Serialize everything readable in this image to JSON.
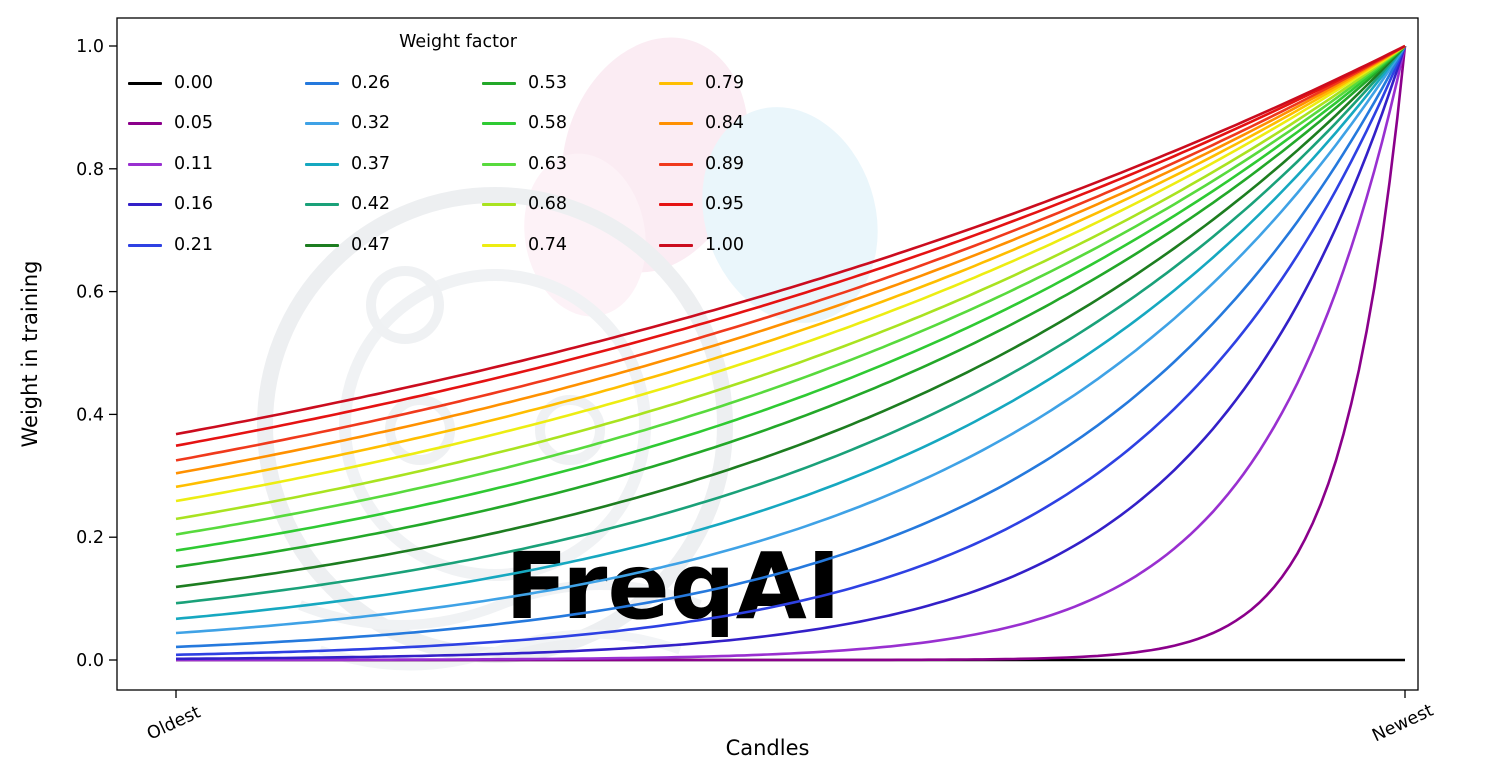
{
  "chart_data": {
    "type": "line",
    "title": "",
    "xlabel": "Candles",
    "ylabel": "Weight in training",
    "x_tick_labels": [
      "Oldest",
      "Newest"
    ],
    "y_ticks": [
      0.0,
      0.2,
      0.4,
      0.6,
      0.8,
      1.0
    ],
    "ylim": [
      0,
      1
    ],
    "x_range": [
      0,
      1
    ],
    "grid": false,
    "legend_title": "Weight factor",
    "legend_position": "upper left",
    "legend_columns": 4,
    "axis_color": "#000000",
    "background": "#ffffff",
    "curve_formula": "weight = exp(-(1 - x) / weight_factor); weight_factor 0 gives a flat line at 0",
    "watermark": "FreqAI",
    "series": [
      {
        "label": "0.00",
        "weight_factor": 0.0,
        "color": "#000000",
        "y_at_oldest": 0.0,
        "y_at_newest": 0.0
      },
      {
        "label": "0.05",
        "weight_factor": 0.05,
        "color": "#8b008b",
        "y_at_oldest": 0.0,
        "y_at_newest": 1.0
      },
      {
        "label": "0.11",
        "weight_factor": 0.11,
        "color": "#9930d0",
        "y_at_oldest": 0.0001,
        "y_at_newest": 1.0
      },
      {
        "label": "0.16",
        "weight_factor": 0.16,
        "color": "#3320c8",
        "y_at_oldest": 0.002,
        "y_at_newest": 1.0
      },
      {
        "label": "0.21",
        "weight_factor": 0.21,
        "color": "#2e41e3",
        "y_at_oldest": 0.009,
        "y_at_newest": 1.0
      },
      {
        "label": "0.26",
        "weight_factor": 0.26,
        "color": "#2579dd",
        "y_at_oldest": 0.021,
        "y_at_newest": 1.0
      },
      {
        "label": "0.32",
        "weight_factor": 0.32,
        "color": "#3fa2e6",
        "y_at_oldest": 0.044,
        "y_at_newest": 1.0
      },
      {
        "label": "0.37",
        "weight_factor": 0.37,
        "color": "#16a8c0",
        "y_at_oldest": 0.067,
        "y_at_newest": 1.0
      },
      {
        "label": "0.42",
        "weight_factor": 0.42,
        "color": "#1aa179",
        "y_at_oldest": 0.092,
        "y_at_newest": 1.0
      },
      {
        "label": "0.47",
        "weight_factor": 0.47,
        "color": "#1d7d20",
        "y_at_oldest": 0.119,
        "y_at_newest": 1.0
      },
      {
        "label": "0.53",
        "weight_factor": 0.53,
        "color": "#23a829",
        "y_at_oldest": 0.152,
        "y_at_newest": 1.0
      },
      {
        "label": "0.58",
        "weight_factor": 0.58,
        "color": "#2fca33",
        "y_at_oldest": 0.178,
        "y_at_newest": 1.0
      },
      {
        "label": "0.63",
        "weight_factor": 0.63,
        "color": "#58da3d",
        "y_at_oldest": 0.204,
        "y_at_newest": 1.0
      },
      {
        "label": "0.68",
        "weight_factor": 0.68,
        "color": "#a9e320",
        "y_at_oldest": 0.23,
        "y_at_newest": 1.0
      },
      {
        "label": "0.74",
        "weight_factor": 0.74,
        "color": "#eded12",
        "y_at_oldest": 0.259,
        "y_at_newest": 1.0
      },
      {
        "label": "0.79",
        "weight_factor": 0.79,
        "color": "#ffbe00",
        "y_at_oldest": 0.282,
        "y_at_newest": 1.0
      },
      {
        "label": "0.84",
        "weight_factor": 0.84,
        "color": "#ff9000",
        "y_at_oldest": 0.304,
        "y_at_newest": 1.0
      },
      {
        "label": "0.89",
        "weight_factor": 0.89,
        "color": "#f0391c",
        "y_at_oldest": 0.325,
        "y_at_newest": 1.0
      },
      {
        "label": "0.95",
        "weight_factor": 0.95,
        "color": "#e51212",
        "y_at_oldest": 0.349,
        "y_at_newest": 1.0
      },
      {
        "label": "1.00",
        "weight_factor": 1.0,
        "color": "#cb0c1e",
        "y_at_oldest": 0.368,
        "y_at_newest": 1.0
      }
    ]
  }
}
